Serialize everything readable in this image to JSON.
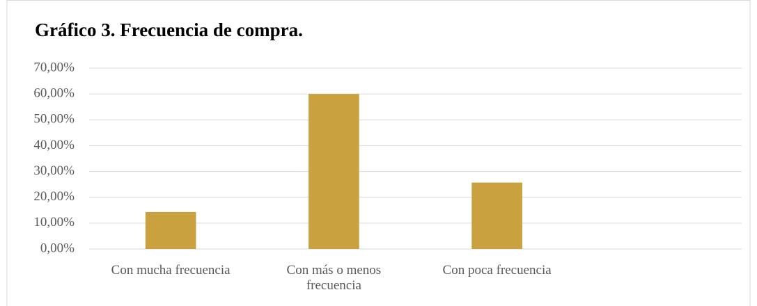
{
  "chart_data": {
    "type": "bar",
    "title": "Gráfico 3. Frecuencia de compra.",
    "categories": [
      "Con mucha frecuencia",
      "Con más o menos frecuencia",
      "Con poca frecuencia",
      null
    ],
    "values": [
      14.3,
      60,
      25.7,
      null
    ],
    "color": "#c9a13f",
    "ylim": [
      0,
      70
    ],
    "yticks": [
      {
        "value": 0,
        "label": "0,00%"
      },
      {
        "value": 10,
        "label": "10,00%"
      },
      {
        "value": 20,
        "label": "20,00%"
      },
      {
        "value": 30,
        "label": "30,00%"
      },
      {
        "value": 40,
        "label": "40,00%"
      },
      {
        "value": 50,
        "label": "50,00%"
      },
      {
        "value": 60,
        "label": "60,00%"
      },
      {
        "value": 70,
        "label": "70,00%"
      }
    ],
    "grid": true
  }
}
